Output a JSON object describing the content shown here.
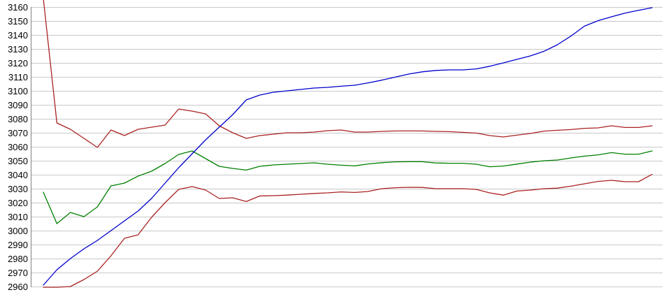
{
  "chart_data": {
    "type": "line",
    "title": "",
    "grid": "horizontal",
    "legend": "none",
    "background_color": "#FFFFFF",
    "gridline_color": "#C8C8C8",
    "axis_line_color": "#808080",
    "label_color": "#000000",
    "x_axis": {
      "labels_visible": false,
      "point_count": 46
    },
    "y_axis": {
      "min": 2960,
      "max": 3160,
      "tick_step": 10,
      "ticks": [
        3160,
        3150,
        3140,
        3130,
        3120,
        3110,
        3100,
        3090,
        3080,
        3070,
        3060,
        3050,
        3040,
        3030,
        3020,
        3010,
        3000,
        2990,
        2980,
        2970,
        2960
      ]
    },
    "series": [
      {
        "name": "red-upper-line",
        "color": "#AA2222",
        "values": [
          3166,
          3077,
          3072.5,
          3066,
          3059.5,
          3072,
          3068,
          3072.5,
          3074,
          3075.5,
          3087,
          3085.5,
          3083.5,
          3075,
          3070,
          3066,
          3068,
          3069,
          3070,
          3070,
          3070.5,
          3071.5,
          3072,
          3070.5,
          3070.5,
          3071,
          3071.3,
          3071.3,
          3071.3,
          3071,
          3070.8,
          3070.3,
          3069.8,
          3068,
          3067,
          3068.3,
          3069.5,
          3071.2,
          3071.8,
          3072.3,
          3073.2,
          3073.5,
          3075,
          3073.8,
          3073.8,
          3075
        ]
      },
      {
        "name": "green-line",
        "color": "#008000",
        "values": [
          3027.5,
          3005,
          3013,
          3010,
          3017,
          3032,
          3034,
          3039,
          3042.5,
          3048,
          3054.5,
          3057,
          3051.5,
          3046,
          3044.5,
          3043.3,
          3046,
          3047,
          3047.5,
          3048,
          3048.5,
          3047.5,
          3046.8,
          3046.3,
          3047.7,
          3048.6,
          3049.2,
          3049.3,
          3049.3,
          3048.4,
          3048.2,
          3048.2,
          3047.5,
          3045.7,
          3046.2,
          3047.6,
          3049,
          3050,
          3050.5,
          3052,
          3053.3,
          3054.2,
          3055.8,
          3054.7,
          3054.7,
          3057
        ]
      },
      {
        "name": "red-lower-line",
        "color": "#AA2222",
        "values": [
          2959.5,
          2959.5,
          2960,
          2965,
          2971,
          2982,
          2994.5,
          2997,
          3009.5,
          3020,
          3029.5,
          3031.5,
          3029,
          3023,
          3023.5,
          3020.8,
          3024.8,
          3025,
          3025.4,
          3026,
          3026.6,
          3027,
          3027.7,
          3027.3,
          3028,
          3030,
          3030.7,
          3031,
          3030.9,
          3030,
          3030,
          3030,
          3029.5,
          3027,
          3025.4,
          3028.3,
          3029,
          3030,
          3030.4,
          3031.8,
          3033.5,
          3035.2,
          3036,
          3035,
          3035,
          3040.3
        ]
      },
      {
        "name": "blue-line",
        "color": "#0000CC",
        "values": [
          2961,
          2972,
          2980,
          2987,
          2993,
          3000,
          3007,
          3014,
          3023,
          3034,
          3045,
          3055,
          3065,
          3074,
          3083,
          3093.5,
          3097,
          3099,
          3100,
          3101,
          3102,
          3102.5,
          3103.3,
          3104,
          3105.7,
          3107.6,
          3109.8,
          3112,
          3113.6,
          3114.6,
          3115,
          3115,
          3115.7,
          3117.6,
          3120,
          3122.5,
          3125,
          3128.3,
          3133,
          3139.2,
          3146.3,
          3150.2,
          3153,
          3155.6,
          3157.6,
          3159.5
        ]
      }
    ]
  }
}
